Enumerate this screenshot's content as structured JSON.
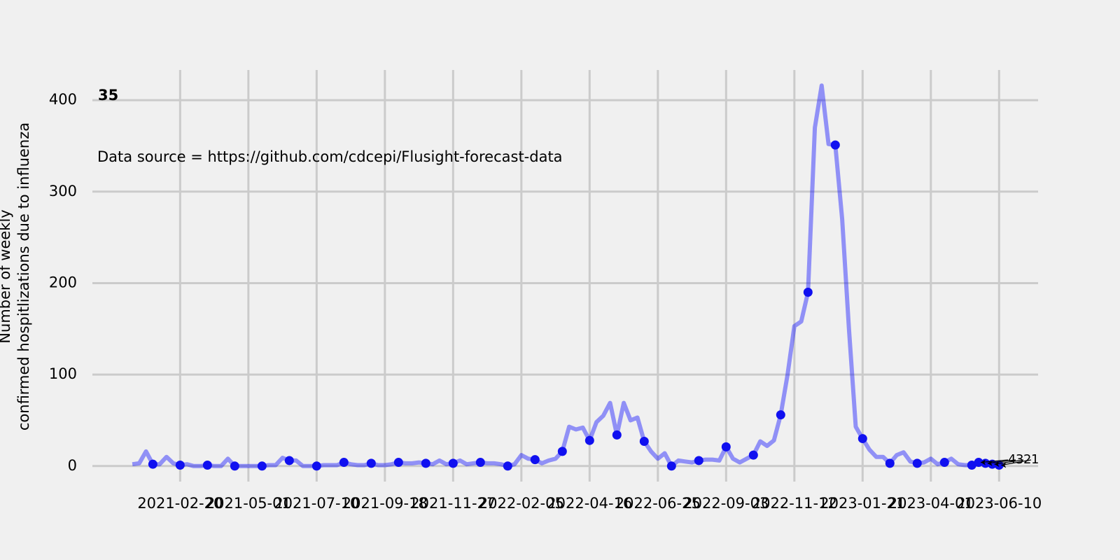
{
  "chart_data": {
    "type": "line",
    "title": "35",
    "subtitle": "Data source = https://github.com/cdcepi/Flusight-forecast-data",
    "y_label": [
      "Number of weekly",
      "confirmed hospitlizations due to influenza"
    ],
    "x": [
      "2021-01-02",
      "2021-01-09",
      "2021-01-16",
      "2021-01-23",
      "2021-01-30",
      "2021-02-06",
      "2021-02-13",
      "2021-02-20",
      "2021-02-27",
      "2021-03-06",
      "2021-03-13",
      "2021-03-20",
      "2021-03-27",
      "2021-04-03",
      "2021-04-10",
      "2021-04-17",
      "2021-04-24",
      "2021-05-01",
      "2021-05-08",
      "2021-05-15",
      "2021-05-22",
      "2021-05-29",
      "2021-06-05",
      "2021-06-12",
      "2021-06-19",
      "2021-06-26",
      "2021-07-03",
      "2021-07-10",
      "2021-07-17",
      "2021-07-24",
      "2021-07-31",
      "2021-08-07",
      "2021-08-14",
      "2021-08-21",
      "2021-08-28",
      "2021-09-04",
      "2021-09-11",
      "2021-09-18",
      "2021-09-25",
      "2021-10-02",
      "2021-10-09",
      "2021-10-16",
      "2021-10-23",
      "2021-10-30",
      "2021-11-06",
      "2021-11-13",
      "2021-11-20",
      "2021-11-27",
      "2021-12-04",
      "2021-12-11",
      "2021-12-18",
      "2021-12-25",
      "2022-01-01",
      "2022-01-08",
      "2022-01-15",
      "2022-01-22",
      "2022-01-29",
      "2022-02-05",
      "2022-02-12",
      "2022-02-19",
      "2022-02-26",
      "2022-03-05",
      "2022-03-12",
      "2022-03-19",
      "2022-03-26",
      "2022-04-02",
      "2022-04-09",
      "2022-04-16",
      "2022-04-23",
      "2022-04-30",
      "2022-05-07",
      "2022-05-14",
      "2022-05-21",
      "2022-05-28",
      "2022-06-04",
      "2022-06-11",
      "2022-06-18",
      "2022-06-25",
      "2022-07-02",
      "2022-07-09",
      "2022-07-16",
      "2022-07-23",
      "2022-07-30",
      "2022-08-06",
      "2022-08-13",
      "2022-08-20",
      "2022-08-27",
      "2022-09-03",
      "2022-09-10",
      "2022-09-17",
      "2022-09-24",
      "2022-10-01",
      "2022-10-08",
      "2022-10-15",
      "2022-10-22",
      "2022-10-29",
      "2022-11-05",
      "2022-11-12",
      "2022-11-19",
      "2022-11-26",
      "2022-12-03",
      "2022-12-10",
      "2022-12-17",
      "2022-12-24",
      "2022-12-31",
      "2023-01-07",
      "2023-01-14",
      "2023-01-21",
      "2023-01-28",
      "2023-02-04",
      "2023-02-11",
      "2023-02-18",
      "2023-02-25",
      "2023-03-04",
      "2023-03-11",
      "2023-03-18",
      "2023-03-25",
      "2023-04-01",
      "2023-04-08",
      "2023-04-15",
      "2023-04-22",
      "2023-04-29",
      "2023-05-06",
      "2023-05-13",
      "2023-05-20",
      "2023-05-27",
      "2023-06-03",
      "2023-06-10"
    ],
    "series": [
      {
        "style": "line",
        "color": "rgba(0,0,255,0.4)",
        "values": [
          2,
          3,
          16,
          2,
          2,
          10,
          3,
          1,
          2,
          0,
          0,
          1,
          0,
          0,
          8,
          0,
          0,
          0,
          0,
          0,
          1,
          1,
          9,
          6,
          6,
          0,
          0,
          0,
          1,
          1,
          1,
          4,
          2,
          1,
          1,
          3,
          1,
          1,
          2,
          4,
          3,
          3,
          4,
          3,
          2,
          6,
          2,
          3,
          6,
          2,
          3,
          4,
          3,
          3,
          2,
          0,
          2,
          12,
          8,
          7,
          3,
          6,
          8,
          16,
          43,
          40,
          42,
          28,
          48,
          55,
          69,
          34,
          69,
          50,
          53,
          27,
          16,
          8,
          14,
          0,
          6,
          5,
          4,
          6,
          7,
          7,
          6,
          21,
          8,
          4,
          8,
          12,
          27,
          22,
          28,
          56,
          100,
          153,
          158,
          190,
          370,
          416,
          352,
          351,
          270,
          150,
          43,
          30,
          18,
          10,
          10,
          3,
          12,
          15,
          5,
          3,
          4,
          8,
          2,
          4,
          8,
          2,
          1,
          1,
          4,
          3,
          2,
          1
        ]
      },
      {
        "style": "marker",
        "color": "#1010f0",
        "x": [
          "2021-01-23",
          "2021-02-20",
          "2021-03-20",
          "2021-04-17",
          "2021-05-15",
          "2021-06-12",
          "2021-07-10",
          "2021-08-07",
          "2021-09-04",
          "2021-10-02",
          "2021-10-30",
          "2021-11-27",
          "2021-12-25",
          "2022-01-22",
          "2022-02-19",
          "2022-03-19",
          "2022-04-16",
          "2022-05-14",
          "2022-06-11",
          "2022-07-09",
          "2022-08-06",
          "2022-09-03",
          "2022-10-01",
          "2022-10-29",
          "2022-11-26",
          "2022-12-24",
          "2023-01-21",
          "2023-02-18",
          "2023-03-18",
          "2023-04-15",
          "2023-05-13",
          "2023-05-20",
          "2023-05-27",
          "2023-06-03",
          "2023-06-10"
        ],
        "values": [
          2,
          1,
          1,
          0,
          0,
          6,
          0,
          4,
          3,
          4,
          3,
          3,
          4,
          0,
          7,
          16,
          28,
          34,
          27,
          0,
          6,
          21,
          12,
          56,
          190,
          351,
          30,
          3,
          3,
          4,
          1,
          4,
          3,
          2,
          1
        ]
      }
    ],
    "annotations": [
      {
        "text": "4",
        "x": "2023-05-20",
        "y": 4
      },
      {
        "text": "3",
        "x": "2023-05-27",
        "y": 3
      },
      {
        "text": "2",
        "x": "2023-06-03",
        "y": 2
      },
      {
        "text": "1",
        "x": "2023-06-10",
        "y": 1
      }
    ],
    "xlim": [
      "2020-11-22",
      "2023-07-20"
    ],
    "xticks": [
      "2021-02-20",
      "2021-05-01",
      "2021-07-10",
      "2021-09-18",
      "2021-11-27",
      "2022-02-05",
      "2022-04-16",
      "2022-06-25",
      "2022-09-03",
      "2022-11-12",
      "2023-01-21",
      "2023-04-01",
      "2023-06-10"
    ],
    "ylim": [
      -17,
      433
    ],
    "yticks": [
      0,
      100,
      200,
      300,
      400
    ],
    "grid": true
  }
}
